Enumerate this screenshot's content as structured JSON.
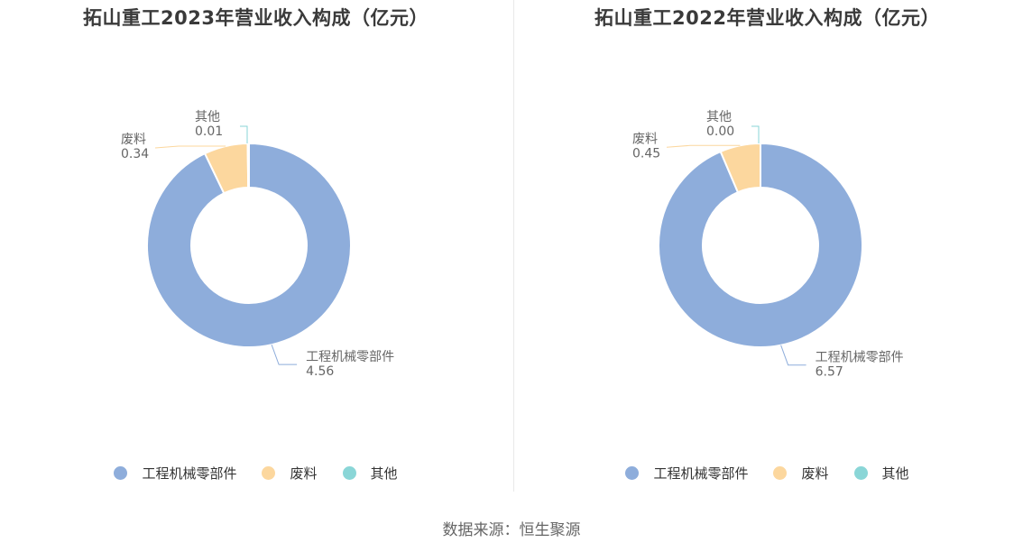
{
  "colors": [
    "#8eaddb",
    "#fcd79e",
    "#8ad6d7"
  ],
  "source": "数据来源：恒生聚源",
  "chart_data": [
    {
      "type": "pie",
      "title": "拓山重工2023年营业收入构成（亿元）",
      "categories": [
        "工程机械零部件",
        "废料",
        "其他"
      ],
      "values": [
        4.56,
        0.34,
        0.01
      ],
      "value_labels": [
        "4.56",
        "0.34",
        "0.01"
      ],
      "legend": "bottom"
    },
    {
      "type": "pie",
      "title": "拓山重工2022年营业收入构成（亿元）",
      "categories": [
        "工程机械零部件",
        "废料",
        "其他"
      ],
      "values": [
        6.57,
        0.45,
        0.0
      ],
      "value_labels": [
        "6.57",
        "0.45",
        "0.00"
      ],
      "legend": "bottom"
    }
  ]
}
